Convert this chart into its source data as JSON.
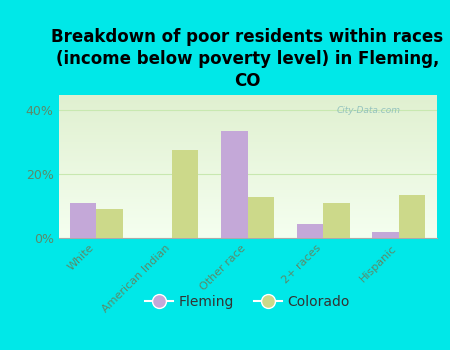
{
  "title": "Breakdown of poor residents within races\n(income below poverty level) in Fleming,\nCO",
  "categories": [
    "White",
    "American Indian",
    "Other race",
    "2+ races",
    "Hispanic"
  ],
  "fleming_values": [
    0.11,
    0.0,
    0.335,
    0.045,
    0.02
  ],
  "colorado_values": [
    0.09,
    0.275,
    0.13,
    0.11,
    0.135
  ],
  "fleming_color": "#c4a8d8",
  "colorado_color": "#ccd98a",
  "background_color": "#00e8e8",
  "ylim": [
    0,
    0.45
  ],
  "yticks": [
    0.0,
    0.2,
    0.4
  ],
  "ytick_labels": [
    "0%",
    "20%",
    "40%"
  ],
  "watermark": "City-Data.com",
  "legend_fleming": "Fleming",
  "legend_colorado": "Colorado",
  "title_fontsize": 12,
  "bar_width": 0.35,
  "axis_label_color": "#5a8a6a",
  "grid_color": "#ddeecc",
  "plot_bg_top": "#f5fff0",
  "plot_bg_bottom": "#e0f0d0"
}
